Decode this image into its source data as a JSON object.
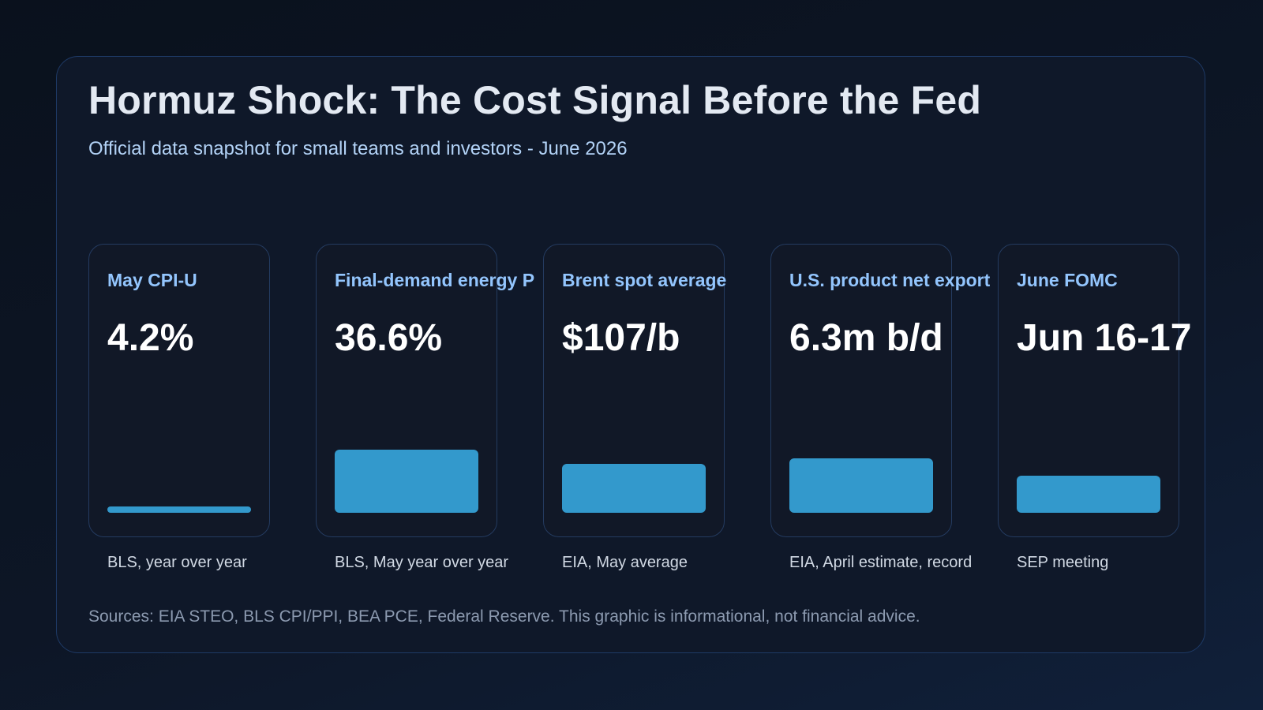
{
  "header": {
    "title": "Hormuz Shock: The Cost Signal Before the Fed",
    "subtitle": "Official data snapshot for small teams and investors - June 2026"
  },
  "chart_data": {
    "type": "bar",
    "title": "Hormuz Shock: The Cost Signal Before the Fed",
    "subtitle": "Official data snapshot for small teams and investors - June 2026",
    "categories": [
      "May CPI-U",
      "Final-demand energy P",
      "Brent spot average",
      "U.S. product net export",
      "June FOMC"
    ],
    "display_values": [
      "4.2%",
      "36.6%",
      "$107/b",
      "6.3m b/d",
      "Jun 16-17"
    ],
    "notes": [
      "BLS, year over year",
      "BLS, May year over year",
      "EIA, May average",
      "EIA, April estimate, record",
      "SEP meeting"
    ],
    "bar_levels": [
      0.1,
      1.0,
      0.77,
      0.86,
      0.59
    ],
    "bar_color": "#3399cc",
    "grid": false,
    "legend": "none"
  },
  "footer": {
    "sources": "Sources: EIA STEO, BLS CPI/PPI, BEA PCE, Federal Reserve. This graphic is informational, not financial advice."
  }
}
